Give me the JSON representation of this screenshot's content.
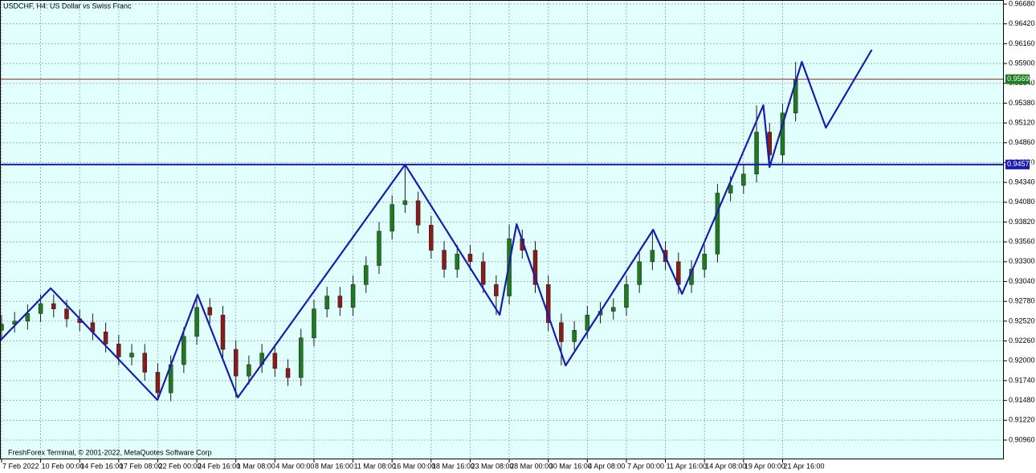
{
  "chart_data": {
    "type": "candlestick",
    "title": "USDCHF, H4:  US Dollar vs Swiss Franc",
    "footer": "FreshForex Terminal, © 2001-2022, MetaQuotes Software Corp",
    "background": "#e1fffd",
    "grid": true,
    "up_color": "#1f7a1f",
    "down_color": "#8b1a1a",
    "wick_color": "#1a1a1a",
    "xlim": [
      -0.12,
      77.0
    ],
    "ylim": [
      0.90707,
      0.96733
    ],
    "xticks": [
      {
        "value": 0,
        "label": "7 Feb 2022"
      },
      {
        "value": 3,
        "label": "10 Feb 00:00"
      },
      {
        "value": 6,
        "label": "14 Feb 16:00"
      },
      {
        "value": 9,
        "label": "17 Feb 08:00"
      },
      {
        "value": 12,
        "label": "22 Feb 00:00"
      },
      {
        "value": 15,
        "label": "24 Feb 16:00"
      },
      {
        "value": 18,
        "label": "1 Mar 08:00"
      },
      {
        "value": 21,
        "label": "4 Mar 00:00"
      },
      {
        "value": 24,
        "label": "8 Mar 16:00"
      },
      {
        "value": 27,
        "label": "11 Mar 08:00"
      },
      {
        "value": 30,
        "label": "16 Mar 00:00"
      },
      {
        "value": 33,
        "label": "18 Mar 16:00"
      },
      {
        "value": 36,
        "label": "23 Mar 08:00"
      },
      {
        "value": 39,
        "label": "28 Mar 00:00"
      },
      {
        "value": 42,
        "label": "30 Mar 16:00"
      },
      {
        "value": 45,
        "label": "4 Apr 08:00"
      },
      {
        "value": 48,
        "label": "7 Apr 00:00"
      },
      {
        "value": 51,
        "label": "11 Apr 16:00"
      },
      {
        "value": 54,
        "label": "14 Apr 08:00"
      },
      {
        "value": 57,
        "label": "19 Apr 00:00"
      },
      {
        "value": 60,
        "label": "21 Apr 16:00"
      }
    ],
    "yticks": [
      {
        "value": 0.9668,
        "label": "0.96680"
      },
      {
        "value": 0.9642,
        "label": "0.96420"
      },
      {
        "value": 0.9616,
        "label": "0.96160"
      },
      {
        "value": 0.959,
        "label": "0.95900"
      },
      {
        "value": 0.9564,
        "label": "0.95640"
      },
      {
        "value": 0.9538,
        "label": "0.95380"
      },
      {
        "value": 0.9512,
        "label": "0.95120"
      },
      {
        "value": 0.9486,
        "label": "0.94860"
      },
      {
        "value": 0.946,
        "label": "0.94600"
      },
      {
        "value": 0.9434,
        "label": "0.94340"
      },
      {
        "value": 0.9408,
        "label": "0.94080"
      },
      {
        "value": 0.9382,
        "label": "0.93820"
      },
      {
        "value": 0.9356,
        "label": "0.93560"
      },
      {
        "value": 0.933,
        "label": "0.93300"
      },
      {
        "value": 0.9304,
        "label": "0.93040"
      },
      {
        "value": 0.9278,
        "label": "0.92780"
      },
      {
        "value": 0.9252,
        "label": "0.92520"
      },
      {
        "value": 0.9226,
        "label": "0.92260"
      },
      {
        "value": 0.92,
        "label": "0.92000"
      },
      {
        "value": 0.9174,
        "label": "0.91740"
      },
      {
        "value": 0.9148,
        "label": "0.91480"
      },
      {
        "value": 0.9122,
        "label": "0.91220"
      },
      {
        "value": 0.9096,
        "label": "0.90960"
      }
    ],
    "candles": {
      "open": [
        0.924,
        0.9248,
        0.9252,
        0.9262,
        0.9275,
        0.9268,
        0.9255,
        0.925,
        0.9238,
        0.9222,
        0.9205,
        0.921,
        0.9185,
        0.9158,
        0.9195,
        0.9232,
        0.927,
        0.926,
        0.9215,
        0.918,
        0.9195,
        0.921,
        0.919,
        0.9178,
        0.923,
        0.9268,
        0.9285,
        0.927,
        0.93,
        0.9325,
        0.937,
        0.9405,
        0.941,
        0.9378,
        0.9345,
        0.932,
        0.934,
        0.933,
        0.93,
        0.9285,
        0.936,
        0.9345,
        0.93,
        0.925,
        0.9225,
        0.924,
        0.926,
        0.9265,
        0.927,
        0.93,
        0.933,
        0.9345,
        0.933,
        0.93,
        0.932,
        0.934,
        0.942,
        0.943,
        0.9445,
        0.95,
        0.947,
        0.9525
      ],
      "high": [
        0.926,
        0.9264,
        0.9274,
        0.9287,
        0.9287,
        0.928,
        0.9267,
        0.9262,
        0.925,
        0.9234,
        0.9222,
        0.9222,
        0.9197,
        0.9207,
        0.9244,
        0.9282,
        0.9282,
        0.9272,
        0.9227,
        0.9207,
        0.9222,
        0.9222,
        0.9202,
        0.9242,
        0.928,
        0.9297,
        0.9297,
        0.9312,
        0.9337,
        0.9382,
        0.9417,
        0.9457,
        0.9422,
        0.939,
        0.9357,
        0.9352,
        0.9352,
        0.9342,
        0.9312,
        0.9379,
        0.9372,
        0.9357,
        0.9312,
        0.9262,
        0.9252,
        0.9272,
        0.9277,
        0.9282,
        0.9312,
        0.9342,
        0.9372,
        0.9357,
        0.9342,
        0.9332,
        0.9352,
        0.9432,
        0.9442,
        0.9457,
        0.9535,
        0.9512,
        0.9537,
        0.9592
      ],
      "low": [
        0.9229,
        0.9237,
        0.9241,
        0.9251,
        0.9257,
        0.9244,
        0.9239,
        0.9227,
        0.9211,
        0.9194,
        0.9194,
        0.9174,
        0.9149,
        0.9147,
        0.9184,
        0.9221,
        0.9249,
        0.9204,
        0.9152,
        0.9169,
        0.9184,
        0.9179,
        0.9167,
        0.9167,
        0.9219,
        0.9257,
        0.9259,
        0.9259,
        0.9289,
        0.9314,
        0.9359,
        0.9394,
        0.9367,
        0.9334,
        0.9309,
        0.9309,
        0.9319,
        0.9289,
        0.926,
        0.9274,
        0.9334,
        0.9289,
        0.9239,
        0.9194,
        0.9214,
        0.9229,
        0.9249,
        0.9254,
        0.9259,
        0.9289,
        0.9319,
        0.9319,
        0.9288,
        0.9289,
        0.9309,
        0.9329,
        0.9409,
        0.9419,
        0.9434,
        0.9454,
        0.9459,
        0.9514
      ],
      "close": [
        0.9248,
        0.9252,
        0.9262,
        0.9275,
        0.9268,
        0.9255,
        0.925,
        0.9238,
        0.9222,
        0.9205,
        0.921,
        0.9185,
        0.9158,
        0.9195,
        0.9232,
        0.927,
        0.926,
        0.9215,
        0.918,
        0.9195,
        0.921,
        0.919,
        0.9178,
        0.923,
        0.9268,
        0.9285,
        0.927,
        0.93,
        0.9325,
        0.937,
        0.9405,
        0.941,
        0.9378,
        0.9345,
        0.932,
        0.934,
        0.933,
        0.93,
        0.9285,
        0.936,
        0.9345,
        0.93,
        0.925,
        0.9225,
        0.924,
        0.926,
        0.9265,
        0.927,
        0.93,
        0.933,
        0.9345,
        0.933,
        0.93,
        0.932,
        0.934,
        0.942,
        0.943,
        0.9445,
        0.95,
        0.947,
        0.9525,
        0.9569
      ]
    },
    "zigzag": {
      "color": "#1a1ab4",
      "x": [
        -0.1,
        3.77,
        11.98,
        15.06,
        18.15,
        31.0,
        38.27,
        39.57,
        43.33,
        50.06,
        52.28,
        58.52,
        59.0,
        61.48,
        63.33,
        66.85
      ],
      "values": [
        0.92266,
        0.92951,
        0.91486,
        0.92866,
        0.91518,
        0.94573,
        0.92603,
        0.93793,
        0.91939,
        0.9372,
        0.92877,
        0.95353,
        0.94541,
        0.95922,
        0.95058,
        0.9608
      ]
    },
    "hlines": [
      {
        "value": 0.95694,
        "color": "#8b2a1a",
        "box_color": "#1f7a1f"
      },
      {
        "value": 0.94575,
        "color": "#1a1ab4",
        "box_color": "#1a1ab4"
      }
    ]
  }
}
